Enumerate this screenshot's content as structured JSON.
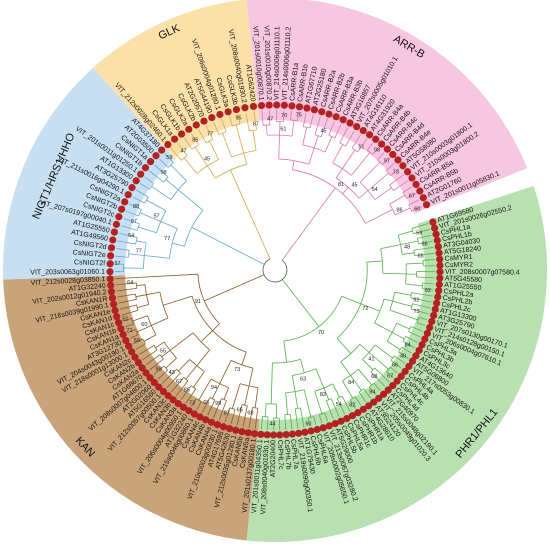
{
  "clades": [
    {
      "name": "ARR-B",
      "color": "#f7c6e0",
      "branch": "#d879ae",
      "start": -6,
      "end": 68,
      "leaves": [
        "VIT_201s0010g00870.1",
        "VIT_201s0010g00870.2",
        "VIT_214s0006g01110.1",
        "VIT_214s0006g01110.2",
        "CsARR-B1a",
        "CsARR-B1b",
        "AT1G67710",
        "AT2G25180",
        "CsARR-B2a",
        "CsARR-B2b",
        "CsARR-B3a",
        "CsARR-B3b",
        "AT3G16857",
        "VIT_207s0005g01010.1",
        "AT4G16110",
        "AT4G31920",
        "CsARR-B4a",
        "CsARR-B4b",
        "CsARR-B4c",
        "CsARR-B4d",
        "CsARR-B4e",
        "AT5G58080",
        "VIT_210s0003g01800.1",
        "VIT_210s0003g01800.2",
        "CsARR-B5a",
        "CsARR-B5b",
        "AT2G01760",
        "VIT_201s0011g05830.1"
      ]
    },
    {
      "name": "PHR1/PHL1",
      "color": "#b9e0b0",
      "branch": "#55b04a",
      "start": 72,
      "end": 186,
      "leaves": [
        "AT1G69580",
        "VIT_201s0026g02550.2",
        "CsPHL1a",
        "CsPHL1b",
        "AT3G04030",
        "AT5G18240",
        "CsMYR1",
        "CsMYR2",
        "VIT_208s0007g07580.4",
        "AT5G45580",
        "AT1G25550",
        "CsPHL2a",
        "CsPHL2b",
        "CsPHL2c",
        "AT1G13300",
        "AT3G25790",
        "VIT_207s0130g00170.1",
        "VIT_214s0128g00150.1",
        "VIT_206s0004g07610.1",
        "CsPHL3a",
        "CsPHL3b",
        "CsPHL3c",
        "AT4G13640",
        "AT5G06800",
        "VIT_217s0053g00830.1",
        "CsPHL4a",
        "CsPHL4b",
        "CsPHL4c",
        "CsPHL4d",
        "AT2G40970",
        "VIT_215s0048g02190.1",
        "VIT_205s0049g01020.3",
        "AT3G24120",
        "AT4G28610",
        "CsPHR1a",
        "CsPHR1b",
        "CsPHR1c",
        "CsPHL5a",
        "CsPHL5b",
        "AT5G29000",
        "VIT_213s0067g03280.2",
        "VIT_209s0002g05650.1",
        "CsPHL6a",
        "CsPHL6b",
        "AT1G79430",
        "VIT_219s0090g00350.1",
        "CsPHL7a",
        "CsPHL7b",
        "CsPHL7c",
        "AT2G20400",
        "VIT_208s0040g01930.1",
        "VIT_201s0011g04350.1"
      ]
    },
    {
      "name": "KAN",
      "color": "#c9a47a",
      "branch": "#8a5a22",
      "start": 186,
      "end": 268,
      "leaves": [
        "VIT_201s0137g00180.1",
        "CsKAN5a",
        "CsKAN5b",
        "VIT_212s0035g01280.1",
        "AT5G42630",
        "AT4G17695",
        "VIT_210s0003g00030.1",
        "CsKAN4a",
        "CsKAN4b",
        "CsKAN4c",
        "VIT_215s0046g00860.1",
        "AT1G32240",
        "VIT_206s0004g00950.1",
        "CsKAN3a",
        "CsKAN3b",
        "CsKAN3c",
        "VIT_212s0057g00500.1",
        "AT5G16560",
        "AT2G02060",
        "VIT_208s0007g04800.1",
        "AT1G68670",
        "CsKAN2a",
        "CsKAN2b",
        "CsKAN2c",
        "VIT_218s0001g13000.1",
        "VIT_204s0043g00190.1",
        "AT3G12730",
        "CsKAN1a",
        "CsKAN1b",
        "CsKAN1c",
        "CsKAN1d",
        "CsKAN1e",
        "VIT_216s0039g01990.1",
        "CsKAN1R",
        "VIT_202s0012g01940.2",
        "AT1G32240",
        "VIT_212s0028g03850.1"
      ]
    },
    {
      "name": "NIGT1/HRS1/HHO",
      "color": "#c7dff0",
      "branch": "#62a6d6",
      "start": 268,
      "end": 318,
      "leaves": [
        "VIT_203s0063g01060.1",
        "CsNIGT2f",
        "CsNIGT2e",
        "CsNIGT2d",
        "AT1G49560",
        "AT1G25550",
        "VIT_207s0197g00040.1",
        "CsNIGT2c",
        "CsNIGT2b",
        "CsNIGT2a",
        "VIT_211s0016g04290.1",
        "AT3G25790",
        "AT1G13300",
        "VIT_201s0011g01250.1",
        "CsNIGT1b",
        "CsNIGT1a",
        "AT2G03500",
        "AT4G37180"
      ]
    },
    {
      "name": "GLK",
      "color": "#fbe0a8",
      "branch": "#d5a94a",
      "start": 318,
      "end": 354,
      "leaves": [
        "VIT_212s0028g02460.1",
        "CsGLK1a",
        "CsGLK1b",
        "CsGLK2a",
        "CsGLK2b",
        "AT2G20570",
        "AT5G44190",
        "VIT_206s0004g01280.1",
        "CsGLK3a",
        "CsGLK3b",
        "VIT_208s0040g01930.2",
        "AT1G62420"
      ]
    }
  ]
}
